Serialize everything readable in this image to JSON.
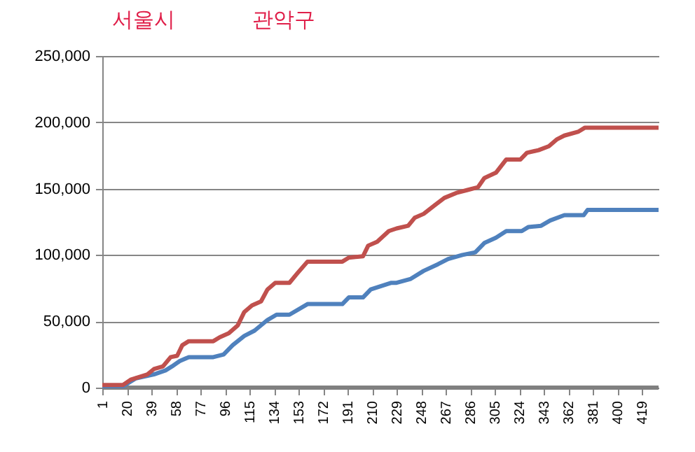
{
  "chart_data": {
    "type": "line",
    "annotations": [
      "서울시",
      "관악구"
    ],
    "xlim": [
      1,
      432
    ],
    "xticks": [
      1,
      20,
      39,
      58,
      77,
      96,
      115,
      134,
      153,
      172,
      191,
      210,
      229,
      248,
      267,
      286,
      305,
      324,
      343,
      362,
      381,
      400,
      419
    ],
    "ylim": [
      0,
      250000
    ],
    "yticks": [
      {
        "value": 0,
        "label": "0"
      },
      {
        "value": 50000,
        "label": "50,000"
      },
      {
        "value": 100000,
        "label": "100,000"
      },
      {
        "value": 150000,
        "label": "150,000"
      },
      {
        "value": 200000,
        "label": "200,000"
      },
      {
        "value": 250000,
        "label": "250,000"
      }
    ],
    "grid": "y",
    "marker": "none",
    "line_style": "solid",
    "series": [
      {
        "color": "#808080",
        "x": [
          1,
          432
        ],
        "values": [
          0,
          0
        ]
      },
      {
        "color": "#4f81bd",
        "x": [
          1,
          17,
          27,
          41,
          50,
          55,
          61,
          68,
          87,
          95,
          102,
          111,
          119,
          129,
          136,
          146,
          160,
          187,
          192,
          203,
          209,
          225,
          229,
          240,
          250,
          261,
          269,
          280,
          290,
          297,
          306,
          314,
          326,
          331,
          341,
          348,
          359,
          374,
          377,
          432
        ],
        "values": [
          1000,
          1000,
          7000,
          10000,
          13000,
          16000,
          20000,
          23000,
          23000,
          25000,
          32000,
          39000,
          43000,
          51000,
          55000,
          55000,
          63000,
          63000,
          68000,
          68000,
          74000,
          79000,
          79000,
          82000,
          88000,
          93000,
          97000,
          100000,
          102000,
          109000,
          113000,
          118000,
          118000,
          121000,
          122000,
          126000,
          130000,
          130000,
          134000,
          134000
        ]
      },
      {
        "color": "#c0504d",
        "x": [
          1,
          17,
          23,
          36,
          41,
          48,
          54,
          59,
          63,
          68,
          87,
          92,
          99,
          106,
          111,
          117,
          124,
          129,
          135,
          146,
          152,
          160,
          187,
          192,
          203,
          207,
          214,
          223,
          229,
          238,
          243,
          250,
          258,
          266,
          276,
          284,
          292,
          297,
          306,
          314,
          325,
          330,
          339,
          347,
          353,
          359,
          370,
          375,
          432
        ],
        "values": [
          2000,
          2000,
          6000,
          10000,
          14000,
          16000,
          23000,
          24000,
          32000,
          35000,
          35000,
          38000,
          41000,
          47000,
          57000,
          62000,
          65000,
          74000,
          79000,
          79000,
          86000,
          95000,
          95000,
          98000,
          99000,
          107000,
          110000,
          118000,
          120000,
          122000,
          128000,
          131000,
          137000,
          143000,
          147000,
          149000,
          151000,
          158000,
          162000,
          172000,
          172000,
          177000,
          179000,
          182000,
          187000,
          190000,
          193000,
          196000,
          196000
        ]
      }
    ]
  }
}
